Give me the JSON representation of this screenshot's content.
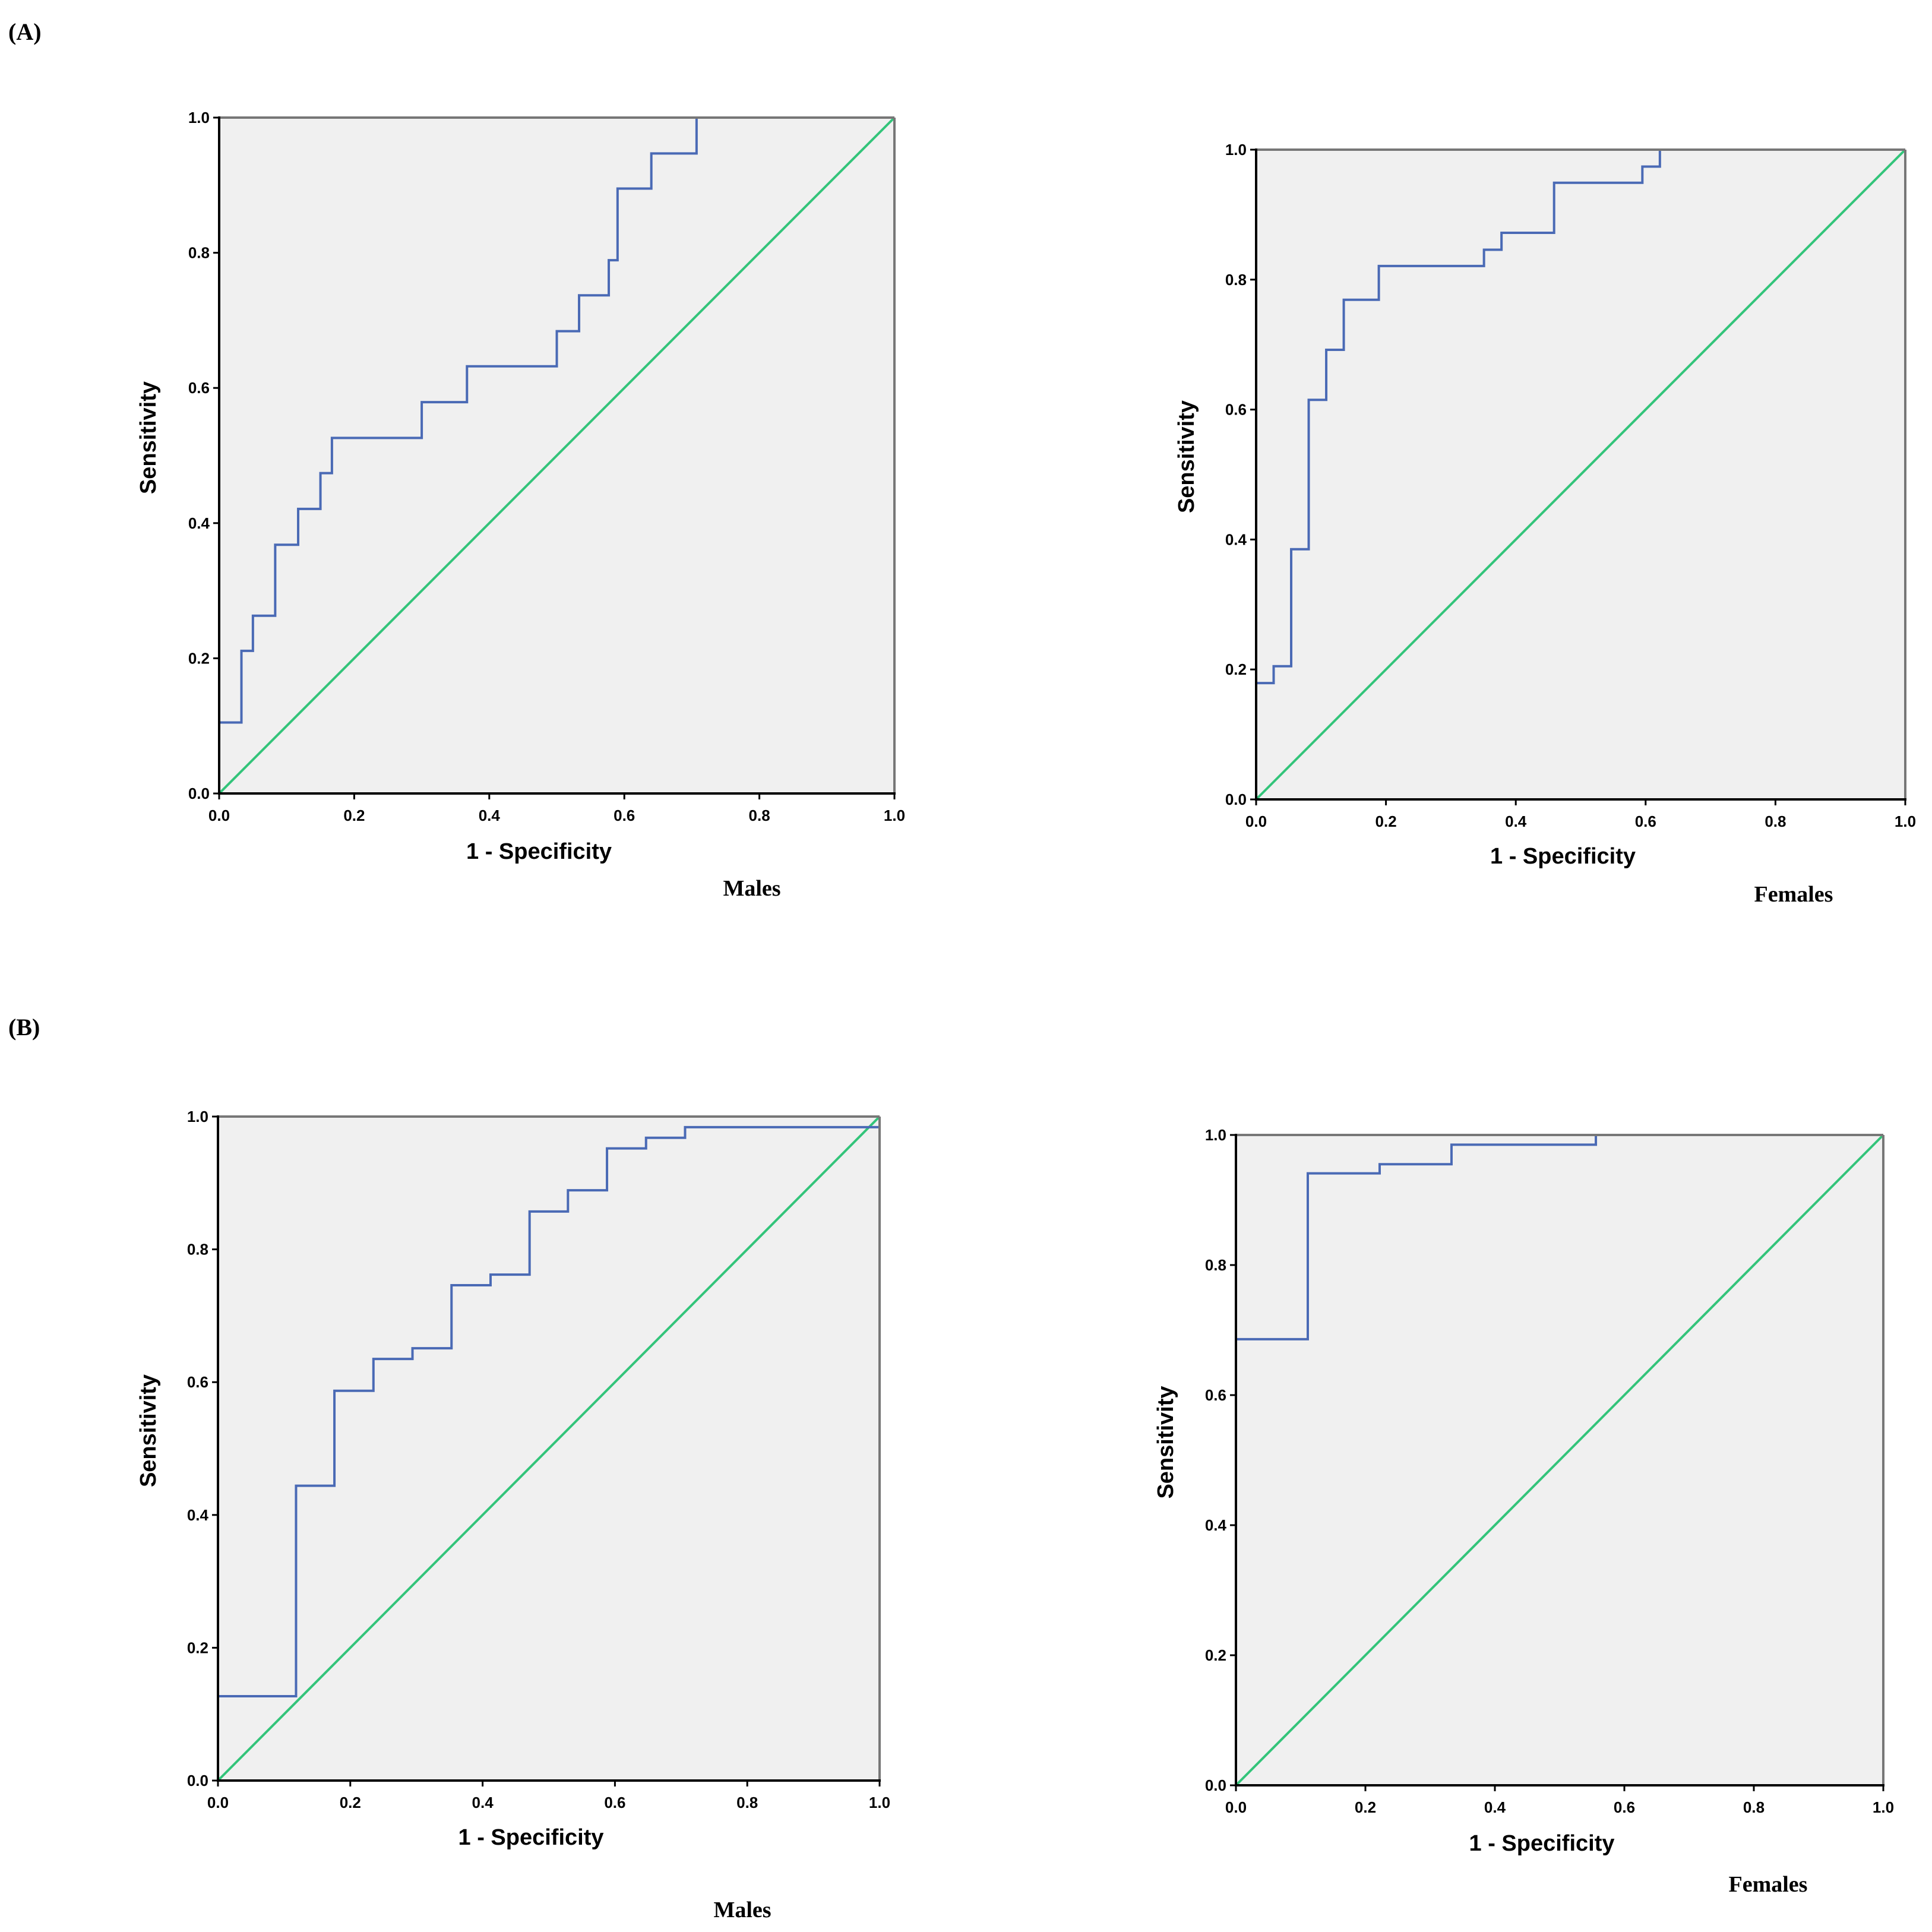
{
  "panels": {
    "A": "(A)",
    "B": "(B)"
  },
  "colors": {
    "roc": "#4a6ab5",
    "reference": "#33c47a",
    "plot_bg": "#f0f0f0",
    "frame": "#000000"
  },
  "chart_data": [
    {
      "type": "line",
      "panel": "(A)",
      "caption": "Males",
      "xlabel": "1 - Specificity",
      "ylabel": "Sensitivity",
      "xlim": [
        0,
        1
      ],
      "ylim": [
        0,
        1
      ],
      "xticks": [
        "0.0",
        "0.2",
        "0.4",
        "0.6",
        "0.8",
        "1.0"
      ],
      "yticks": [
        "0.0",
        "0.2",
        "0.4",
        "0.6",
        "0.8",
        "1.0"
      ],
      "series": [
        {
          "name": "ROC curve",
          "x": [
            0,
            0,
            0.033,
            0.033,
            0.05,
            0.05,
            0.083,
            0.083,
            0.117,
            0.117,
            0.15,
            0.15,
            0.167,
            0.167,
            0.3,
            0.3,
            0.367,
            0.367,
            0.5,
            0.5,
            0.533,
            0.533,
            0.577,
            0.577,
            0.59,
            0.59,
            0.64,
            0.64,
            0.707,
            0.707,
            1
          ],
          "y": [
            0,
            0.105,
            0.105,
            0.211,
            0.211,
            0.263,
            0.263,
            0.368,
            0.368,
            0.421,
            0.421,
            0.474,
            0.474,
            0.526,
            0.526,
            0.579,
            0.579,
            0.632,
            0.632,
            0.684,
            0.684,
            0.737,
            0.737,
            0.789,
            0.789,
            0.895,
            0.895,
            0.947,
            0.947,
            1.0,
            1.0
          ]
        },
        {
          "name": "Reference line",
          "x": [
            0,
            1
          ],
          "y": [
            0,
            1
          ]
        }
      ]
    },
    {
      "type": "line",
      "panel": "(A)",
      "caption": "Females",
      "xlabel": "1 - Specificity",
      "ylabel": "Sensitivity",
      "xlim": [
        0,
        1
      ],
      "ylim": [
        0,
        1
      ],
      "xticks": [
        "0.0",
        "0.2",
        "0.4",
        "0.6",
        "0.8",
        "1.0"
      ],
      "yticks": [
        "0.0",
        "0.2",
        "0.4",
        "0.6",
        "0.8",
        "1.0"
      ],
      "series": [
        {
          "name": "ROC curve",
          "x": [
            0,
            0,
            0.027,
            0.027,
            0.054,
            0.054,
            0.081,
            0.081,
            0.108,
            0.108,
            0.135,
            0.135,
            0.189,
            0.189,
            0.351,
            0.351,
            0.378,
            0.378,
            0.459,
            0.459,
            0.595,
            0.595,
            0.622,
            0.622,
            1
          ],
          "y": [
            0,
            0.179,
            0.179,
            0.205,
            0.205,
            0.385,
            0.385,
            0.615,
            0.615,
            0.692,
            0.692,
            0.769,
            0.769,
            0.821,
            0.821,
            0.846,
            0.846,
            0.872,
            0.872,
            0.949,
            0.949,
            0.974,
            0.974,
            1.0,
            1.0
          ]
        },
        {
          "name": "Reference line",
          "x": [
            0,
            1
          ],
          "y": [
            0,
            1
          ]
        }
      ]
    },
    {
      "type": "line",
      "panel": "(B)",
      "caption": "Males",
      "xlabel": "1 - Specificity",
      "ylabel": "Sensitivity",
      "xlim": [
        0,
        1
      ],
      "ylim": [
        0,
        1
      ],
      "xticks": [
        "0.0",
        "0.2",
        "0.4",
        "0.6",
        "0.8",
        "1.0"
      ],
      "yticks": [
        "0.0",
        "0.2",
        "0.4",
        "0.6",
        "0.8",
        "1.0"
      ],
      "series": [
        {
          "name": "ROC curve",
          "x": [
            0,
            0,
            0.118,
            0.118,
            0.176,
            0.176,
            0.235,
            0.235,
            0.294,
            0.294,
            0.353,
            0.353,
            0.412,
            0.412,
            0.471,
            0.471,
            0.529,
            0.529,
            0.588,
            0.588,
            0.647,
            0.647,
            0.706,
            0.706,
            1,
            1
          ],
          "y": [
            0,
            0.127,
            0.127,
            0.444,
            0.444,
            0.587,
            0.587,
            0.635,
            0.635,
            0.651,
            0.651,
            0.746,
            0.746,
            0.762,
            0.762,
            0.857,
            0.857,
            0.889,
            0.889,
            0.952,
            0.952,
            0.968,
            0.968,
            0.984,
            0.984,
            1.0
          ]
        },
        {
          "name": "Reference line",
          "x": [
            0,
            1
          ],
          "y": [
            0,
            1
          ]
        }
      ]
    },
    {
      "type": "line",
      "panel": "(B)",
      "caption": "Females",
      "xlabel": "1 - Specificity",
      "ylabel": "Sensitivity",
      "xlim": [
        0,
        1
      ],
      "ylim": [
        0,
        1
      ],
      "xticks": [
        "0.0",
        "0.2",
        "0.4",
        "0.6",
        "0.8",
        "1.0"
      ],
      "yticks": [
        "0.0",
        "0.2",
        "0.4",
        "0.6",
        "0.8",
        "1.0"
      ],
      "series": [
        {
          "name": "ROC curve",
          "x": [
            0,
            0,
            0.111,
            0.111,
            0.222,
            0.222,
            0.333,
            0.333,
            0.556,
            0.556,
            1
          ],
          "y": [
            0,
            0.686,
            0.686,
            0.941,
            0.941,
            0.955,
            0.955,
            0.985,
            0.985,
            1.0,
            1.0
          ]
        },
        {
          "name": "Reference line",
          "x": [
            0,
            1
          ],
          "y": [
            0,
            1
          ]
        }
      ]
    }
  ]
}
